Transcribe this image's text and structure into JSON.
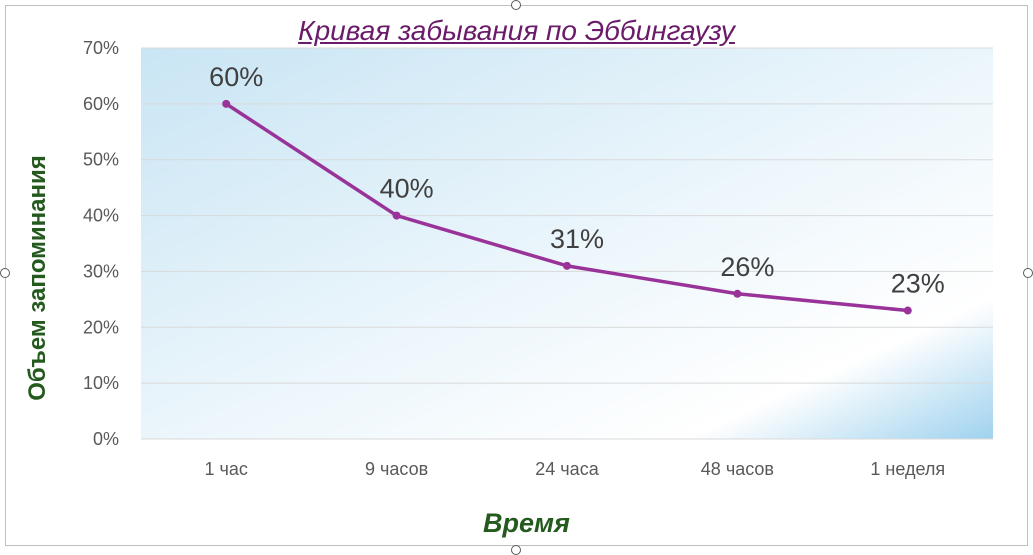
{
  "chart_data": {
    "type": "line",
    "title": "Кривая забывания по Эббингаузу",
    "xlabel": "Время",
    "ylabel": "Объем запоминания",
    "categories": [
      "1 час",
      "9 часов",
      "24 часа",
      "48 часов",
      "1 неделя"
    ],
    "series": [
      {
        "values": [
          60,
          40,
          31,
          26,
          23
        ],
        "data_labels": [
          "60%",
          "40%",
          "31%",
          "26%",
          "23%"
        ]
      }
    ],
    "ylim": [
      0,
      70
    ],
    "yticks": [
      0,
      10,
      20,
      30,
      40,
      50,
      60,
      70
    ],
    "ytick_labels": [
      "0%",
      "10%",
      "20%",
      "30%",
      "40%",
      "50%",
      "60%",
      "70%"
    ],
    "grid": true,
    "colors": {
      "line": "#993399",
      "title": "#6a1b6a",
      "axis_title": "#245a1e"
    }
  }
}
